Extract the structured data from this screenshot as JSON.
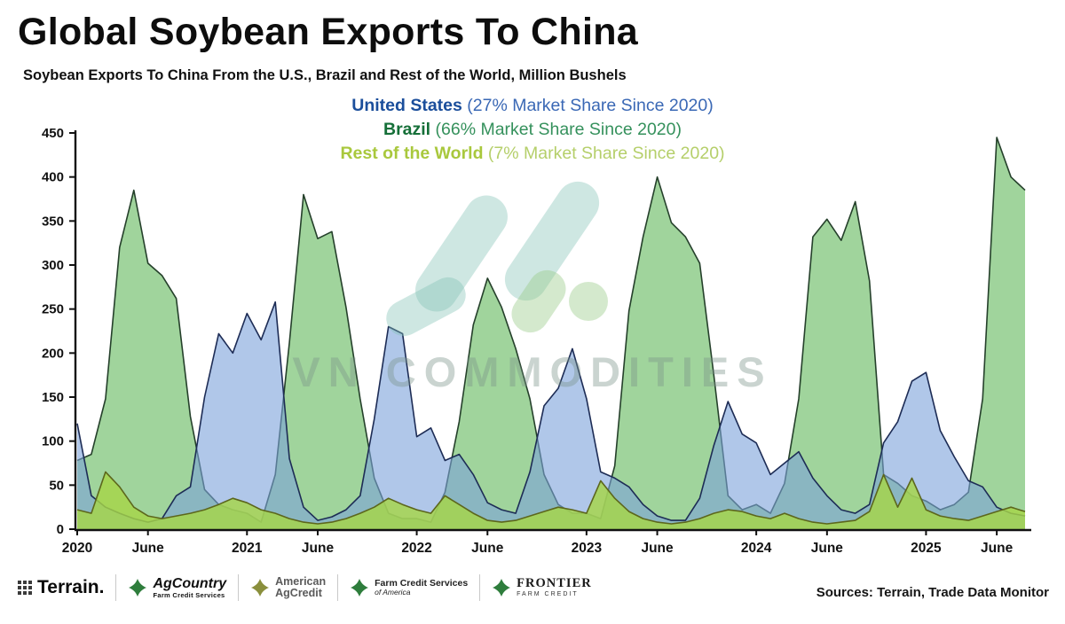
{
  "title": "Global Soybean Exports To China",
  "subtitle": "Soybean Exports To China From the U.S., Brazil and Rest of the World, Million Bushels",
  "legend": [
    {
      "label": "United States",
      "share_text": "(27% Market Share Since 2020)",
      "label_color": "#1b4e9b",
      "share_color": "#3a68b5"
    },
    {
      "label": "Brazil",
      "share_text": "(66% Market Share Since 2020)",
      "label_color": "#156f38",
      "share_color": "#35915c"
    },
    {
      "label": "Rest of the World",
      "share_text": "(7% Market Share Since 2020)",
      "label_color": "#a9c83d",
      "share_color": "#b5cf6a"
    }
  ],
  "watermark": {
    "text": "VN COMMODITIES"
  },
  "footer": {
    "sources": "Sources: Terrain, Trade Data Monitor",
    "logos": [
      {
        "name": "Terrain",
        "text": "Terrain."
      },
      {
        "name": "AgCountry",
        "line1": "AgCountry",
        "line2": "Farm Credit Services"
      },
      {
        "name": "American AgCredit",
        "line1": "American",
        "line2": "AgCredit"
      },
      {
        "name": "Farm Credit Services of America",
        "line1": "Farm Credit Services",
        "line2": "of America"
      },
      {
        "name": "Frontier Farm Credit",
        "line1": "FRONTIER",
        "line2": "FARM CREDIT"
      }
    ]
  },
  "chart_data": {
    "type": "area",
    "title": "Global Soybean Exports To China",
    "xlabel": "",
    "ylabel": "Million Bushels",
    "ylim": [
      0,
      450
    ],
    "grid": false,
    "legend_position": "top",
    "x_start": "2020-01",
    "x_end": "2025-08",
    "x_ticks": [
      {
        "label": "2020",
        "month": 0
      },
      {
        "label": "June",
        "month": 5
      },
      {
        "label": "2021",
        "month": 12
      },
      {
        "label": "June",
        "month": 17
      },
      {
        "label": "2022",
        "month": 24
      },
      {
        "label": "June",
        "month": 29
      },
      {
        "label": "2023",
        "month": 36
      },
      {
        "label": "June",
        "month": 41
      },
      {
        "label": "2024",
        "month": 48
      },
      {
        "label": "June",
        "month": 53
      },
      {
        "label": "2025",
        "month": 60
      },
      {
        "label": "June",
        "month": 65
      }
    ],
    "y_ticks": [
      0,
      50,
      100,
      150,
      200,
      250,
      300,
      350,
      400,
      450
    ],
    "series": [
      {
        "key": "brazil",
        "name": "Brazil",
        "fill": "#98d094",
        "fill_opacity": 0.92,
        "stroke": "#25402b",
        "values": [
          78,
          85,
          148,
          320,
          385,
          302,
          288,
          262,
          128,
          45,
          28,
          22,
          18,
          8,
          62,
          212,
          380,
          330,
          338,
          252,
          148,
          58,
          18,
          12,
          12,
          8,
          42,
          122,
          232,
          285,
          252,
          205,
          148,
          62,
          28,
          18,
          18,
          12,
          72,
          248,
          332,
          400,
          348,
          332,
          302,
          175,
          38,
          22,
          28,
          18,
          52,
          148,
          332,
          352,
          328,
          372,
          282,
          62,
          52,
          38,
          32,
          22,
          28,
          42,
          148,
          445,
          400,
          385
        ]
      },
      {
        "key": "us",
        "name": "United States",
        "fill": "#7ba1db",
        "fill_opacity": 0.6,
        "stroke": "#1d2c55",
        "values": [
          120,
          38,
          25,
          18,
          12,
          8,
          12,
          38,
          48,
          150,
          222,
          200,
          245,
          215,
          258,
          80,
          25,
          10,
          14,
          22,
          38,
          125,
          230,
          222,
          105,
          115,
          78,
          85,
          62,
          30,
          22,
          18,
          65,
          140,
          160,
          205,
          148,
          65,
          58,
          48,
          28,
          15,
          10,
          10,
          35,
          95,
          145,
          108,
          98,
          62,
          75,
          88,
          58,
          38,
          22,
          18,
          28,
          98,
          122,
          168,
          178,
          112,
          82,
          55,
          48,
          25,
          18,
          15
        ]
      },
      {
        "key": "row",
        "name": "Rest of the World",
        "fill": "#a6d548",
        "fill_opacity": 0.82,
        "stroke": "#5c661c",
        "values": [
          22,
          18,
          65,
          48,
          25,
          15,
          12,
          15,
          18,
          22,
          28,
          35,
          30,
          22,
          18,
          12,
          8,
          6,
          8,
          12,
          18,
          25,
          35,
          28,
          22,
          18,
          38,
          28,
          18,
          10,
          8,
          10,
          15,
          20,
          25,
          22,
          18,
          55,
          35,
          20,
          12,
          8,
          6,
          8,
          12,
          18,
          22,
          20,
          15,
          12,
          18,
          12,
          8,
          6,
          8,
          10,
          20,
          62,
          25,
          58,
          22,
          15,
          12,
          10,
          15,
          20,
          25,
          20
        ]
      }
    ]
  }
}
